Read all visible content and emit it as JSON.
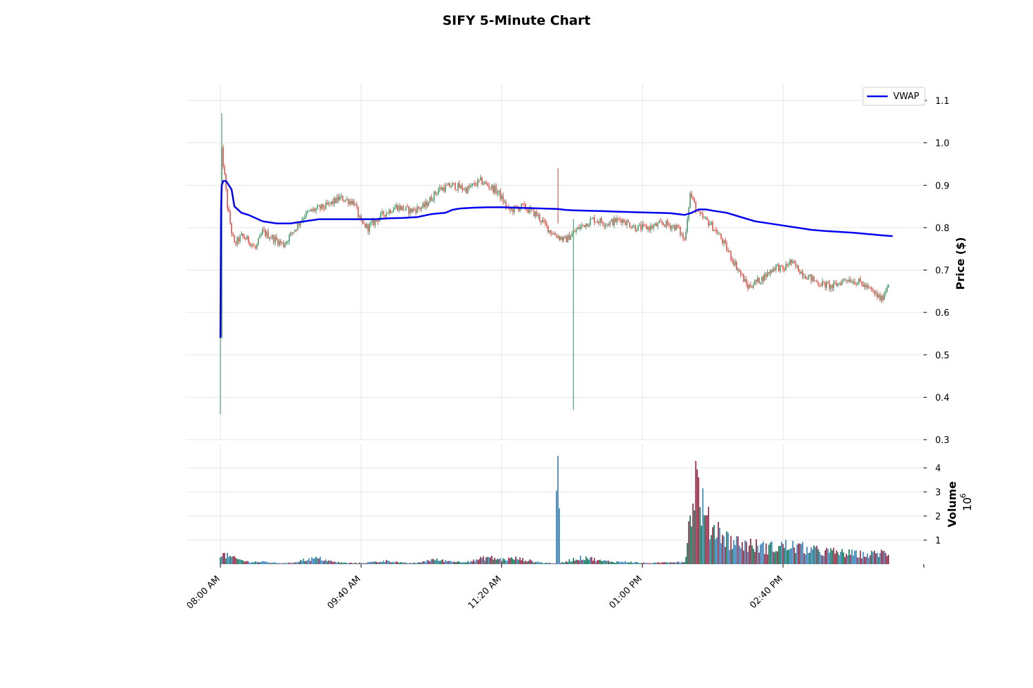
{
  "chart_data": {
    "type": "candlestick",
    "title": "SIFY 5-Minute Chart",
    "grid": true,
    "legend": {
      "entries": [
        "VWAP"
      ],
      "placement": "top-right"
    },
    "colors": {
      "up": "#2e8b57",
      "down": "#e8382f",
      "vwap": "#0000ee",
      "vol_up": "#006f4f",
      "vol_down": "#8b1a3a",
      "vol_neutral": "#2c7bb6"
    },
    "price_panel": {
      "ylabel": "Price ($)",
      "ylim": [
        0.3,
        1.13
      ],
      "yticks": [
        "0.3",
        "0.4",
        "0.5",
        "0.6",
        "0.7",
        "0.8",
        "0.9",
        "1.0",
        "1.1"
      ]
    },
    "volume_panel": {
      "ylabel": "Volume",
      "exponent_label": "10",
      "exponent_power": "6",
      "ylim": [
        0,
        4.5
      ],
      "yticks": [
        "1",
        "2",
        "3",
        "4"
      ]
    },
    "x_ticks": [
      "08:00 AM",
      "09:40 AM",
      "11:20 AM",
      "01:00 PM",
      "02:40 PM"
    ],
    "x_tick_times": [
      480,
      580,
      680,
      780,
      880
    ],
    "x_range": [
      455,
      955
    ],
    "series": [
      {
        "name": "VWAP",
        "x": [
          480,
          480.5,
          481,
          482,
          484,
          486,
          488,
          490,
          495,
          500,
          510,
          520,
          530,
          540,
          550,
          560,
          570,
          580,
          590,
          600,
          610,
          620,
          630,
          640,
          645,
          650,
          660,
          670,
          680,
          690,
          700,
          710,
          720,
          725,
          730,
          740,
          750,
          760,
          770,
          780,
          790,
          800,
          810,
          815,
          820,
          825,
          830,
          840,
          850,
          860,
          870,
          880,
          890,
          900,
          910,
          920,
          930,
          940,
          950,
          958
        ],
        "y": [
          0.54,
          0.84,
          0.9,
          0.91,
          0.91,
          0.9,
          0.89,
          0.85,
          0.835,
          0.83,
          0.815,
          0.81,
          0.81,
          0.815,
          0.82,
          0.82,
          0.82,
          0.82,
          0.82,
          0.822,
          0.823,
          0.825,
          0.832,
          0.835,
          0.842,
          0.845,
          0.847,
          0.848,
          0.848,
          0.847,
          0.846,
          0.845,
          0.844,
          0.842,
          0.841,
          0.84,
          0.839,
          0.838,
          0.837,
          0.836,
          0.835,
          0.834,
          0.83,
          0.835,
          0.843,
          0.843,
          0.84,
          0.835,
          0.825,
          0.815,
          0.81,
          0.805,
          0.8,
          0.795,
          0.792,
          0.79,
          0.788,
          0.785,
          0.782,
          0.78
        ]
      }
    ],
    "price_path": {
      "t": [
        480,
        481,
        483,
        485,
        488,
        490,
        495,
        500,
        505,
        510,
        515,
        520,
        525,
        540,
        545,
        555,
        565,
        575,
        580,
        585,
        595,
        605,
        615,
        625,
        635,
        645,
        655,
        665,
        675,
        678,
        685,
        695,
        700,
        705,
        715,
        725,
        735,
        745,
        755,
        765,
        775,
        785,
        795,
        805,
        810,
        814,
        820,
        824,
        828,
        835,
        845,
        850,
        855,
        865,
        875,
        880,
        885,
        895,
        905,
        915,
        925,
        935,
        945,
        950,
        955
      ],
      "p": [
        0.54,
        0.98,
        0.92,
        0.85,
        0.79,
        0.76,
        0.78,
        0.77,
        0.75,
        0.79,
        0.78,
        0.77,
        0.76,
        0.83,
        0.84,
        0.85,
        0.87,
        0.86,
        0.81,
        0.8,
        0.83,
        0.85,
        0.84,
        0.85,
        0.89,
        0.9,
        0.89,
        0.91,
        0.89,
        0.88,
        0.84,
        0.85,
        0.84,
        0.83,
        0.79,
        0.77,
        0.8,
        0.82,
        0.81,
        0.82,
        0.8,
        0.8,
        0.81,
        0.8,
        0.77,
        0.88,
        0.83,
        0.82,
        0.81,
        0.78,
        0.72,
        0.69,
        0.66,
        0.68,
        0.71,
        0.7,
        0.72,
        0.69,
        0.67,
        0.66,
        0.68,
        0.67,
        0.645,
        0.63,
        0.67
      ]
    },
    "wick_spikes": [
      {
        "t": 480,
        "low": 0.36,
        "high": 0.56
      },
      {
        "t": 481,
        "low": 0.9,
        "high": 1.07
      },
      {
        "t": 720,
        "low": 0.81,
        "high": 0.94
      },
      {
        "t": 731,
        "low": 0.37,
        "high": 0.82
      }
    ],
    "volume_profile": {
      "t": [
        480,
        485,
        490,
        500,
        510,
        520,
        530,
        540,
        550,
        560,
        570,
        580,
        590,
        600,
        610,
        620,
        630,
        640,
        650,
        660,
        670,
        680,
        690,
        700,
        710,
        718,
        720,
        722,
        730,
        740,
        750,
        760,
        770,
        780,
        790,
        800,
        810,
        812,
        815,
        818,
        820,
        825,
        830,
        835,
        840,
        850,
        860,
        870,
        880,
        890,
        900,
        910,
        920,
        930,
        940,
        950,
        955
      ],
      "v": [
        0.45,
        0.35,
        0.25,
        0.1,
        0.1,
        0.05,
        0.05,
        0.2,
        0.25,
        0.1,
        0.05,
        0.05,
        0.1,
        0.15,
        0.05,
        0.05,
        0.2,
        0.15,
        0.1,
        0.15,
        0.3,
        0.2,
        0.25,
        0.15,
        0.05,
        0.05,
        4.5,
        0.05,
        0.2,
        0.3,
        0.15,
        0.1,
        0.1,
        0.05,
        0.05,
        0.1,
        0.1,
        1.0,
        2.5,
        3.7,
        3.2,
        1.9,
        1.6,
        1.5,
        1.1,
        0.9,
        0.8,
        0.7,
        0.8,
        0.75,
        0.6,
        0.55,
        0.5,
        0.45,
        0.4,
        0.5,
        0.45
      ]
    }
  }
}
